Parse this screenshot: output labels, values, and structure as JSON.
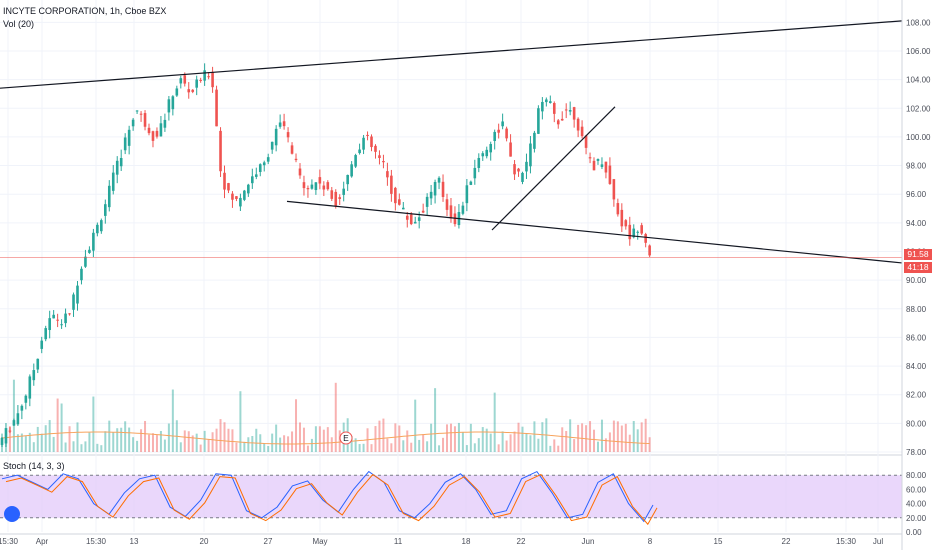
{
  "legend": {
    "title": "INCYTE CORPORATION, 1h, Cboe BZX",
    "vol": "Vol (20)",
    "stoch": "Stoch (14, 3, 3)"
  },
  "badges": {
    "price": "91.58",
    "countdown": "41:18"
  },
  "event_marker": "E",
  "colors": {
    "up": "#26a69a",
    "down": "#ef5350",
    "line": "#131722",
    "vol_ma": "#f7a35c",
    "stoch_k": "#2962ff",
    "stoch_d": "#ff6d00",
    "stoch_band": "#e1c6fa",
    "price_line": "#ef5350"
  },
  "chart_data": [
    {
      "type": "candlestick",
      "title": "INCYTE CORPORATION, 1h, Cboe BZX",
      "x_ticks": [
        "15:30",
        "Apr",
        "15:30",
        "13",
        "20",
        "27",
        "May",
        "11",
        "18",
        "22",
        "Jun",
        "8",
        "15",
        "22",
        "15:30",
        "Jul"
      ],
      "y_ticks": [
        "78.00",
        "80.00",
        "82.00",
        "84.00",
        "86.00",
        "88.00",
        "90.00",
        "92.00",
        "94.00",
        "96.00",
        "98.00",
        "100.00",
        "102.00",
        "104.00",
        "106.00",
        "108.00"
      ],
      "ylim": [
        78,
        109
      ],
      "last_price": 91.58,
      "path": [
        [
          0,
          78.5
        ],
        [
          6,
          79.5
        ],
        [
          12,
          80.5
        ],
        [
          18,
          82
        ],
        [
          24,
          84
        ],
        [
          30,
          86.5
        ],
        [
          36,
          87.5
        ],
        [
          42,
          87
        ],
        [
          48,
          88
        ],
        [
          54,
          91
        ],
        [
          60,
          92.5
        ],
        [
          66,
          94
        ],
        [
          72,
          96
        ],
        [
          78,
          98
        ],
        [
          84,
          100
        ],
        [
          90,
          102
        ],
        [
          96,
          101
        ],
        [
          102,
          100
        ],
        [
          108,
          101
        ],
        [
          114,
          103
        ],
        [
          120,
          104
        ],
        [
          126,
          103
        ],
        [
          132,
          104
        ],
        [
          138,
          104.5
        ],
        [
          141,
          103.5
        ],
        [
          145,
          98
        ],
        [
          150,
          96
        ],
        [
          156,
          95.5
        ],
        [
          162,
          96.5
        ],
        [
          168,
          97.5
        ],
        [
          174,
          98
        ],
        [
          180,
          100
        ],
        [
          186,
          101
        ],
        [
          192,
          99
        ],
        [
          198,
          97
        ],
        [
          204,
          96.5
        ],
        [
          210,
          97
        ],
        [
          216,
          96
        ],
        [
          222,
          95.5
        ],
        [
          228,
          97
        ],
        [
          234,
          99
        ],
        [
          240,
          100
        ],
        [
          246,
          99
        ],
        [
          252,
          98
        ],
        [
          258,
          96
        ],
        [
          264,
          95
        ],
        [
          270,
          94
        ],
        [
          276,
          94.5
        ],
        [
          282,
          96
        ],
        [
          288,
          97
        ],
        [
          294,
          95
        ],
        [
          300,
          94
        ],
        [
          306,
          96
        ],
        [
          312,
          98
        ],
        [
          318,
          99
        ],
        [
          324,
          100
        ],
        [
          330,
          101
        ],
        [
          336,
          98
        ],
        [
          342,
          97
        ],
        [
          348,
          99
        ],
        [
          354,
          102
        ],
        [
          360,
          102.5
        ],
        [
          366,
          101
        ],
        [
          372,
          102
        ],
        [
          378,
          101.5
        ],
        [
          384,
          99
        ],
        [
          390,
          98
        ],
        [
          396,
          98.5
        ],
        [
          402,
          96
        ],
        [
          408,
          94
        ],
        [
          414,
          93
        ],
        [
          420,
          94
        ],
        [
          426,
          92
        ]
      ]
    },
    {
      "type": "bar",
      "title": "Vol (20)",
      "note": "volume histogram with 20-period moving average"
    },
    {
      "type": "line",
      "title": "Stoch (14, 3, 3)",
      "y_ticks": [
        "0.00",
        "20.00",
        "40.00",
        "60.00",
        "80.00"
      ],
      "ylim": [
        0,
        100
      ],
      "bands": [
        20,
        80
      ],
      "k_path": [
        [
          0,
          75
        ],
        [
          10,
          80
        ],
        [
          20,
          70
        ],
        [
          30,
          60
        ],
        [
          40,
          82
        ],
        [
          50,
          75
        ],
        [
          60,
          40
        ],
        [
          70,
          25
        ],
        [
          80,
          55
        ],
        [
          90,
          75
        ],
        [
          100,
          80
        ],
        [
          110,
          35
        ],
        [
          120,
          22
        ],
        [
          130,
          45
        ],
        [
          140,
          82
        ],
        [
          150,
          80
        ],
        [
          160,
          30
        ],
        [
          170,
          20
        ],
        [
          180,
          35
        ],
        [
          190,
          65
        ],
        [
          200,
          72
        ],
        [
          210,
          45
        ],
        [
          220,
          28
        ],
        [
          230,
          60
        ],
        [
          240,
          85
        ],
        [
          250,
          70
        ],
        [
          260,
          30
        ],
        [
          270,
          20
        ],
        [
          280,
          40
        ],
        [
          290,
          70
        ],
        [
          300,
          82
        ],
        [
          310,
          60
        ],
        [
          320,
          25
        ],
        [
          330,
          30
        ],
        [
          340,
          75
        ],
        [
          350,
          85
        ],
        [
          360,
          55
        ],
        [
          370,
          20
        ],
        [
          380,
          25
        ],
        [
          390,
          70
        ],
        [
          400,
          82
        ],
        [
          410,
          40
        ],
        [
          420,
          15
        ],
        [
          426,
          38
        ]
      ]
    }
  ]
}
